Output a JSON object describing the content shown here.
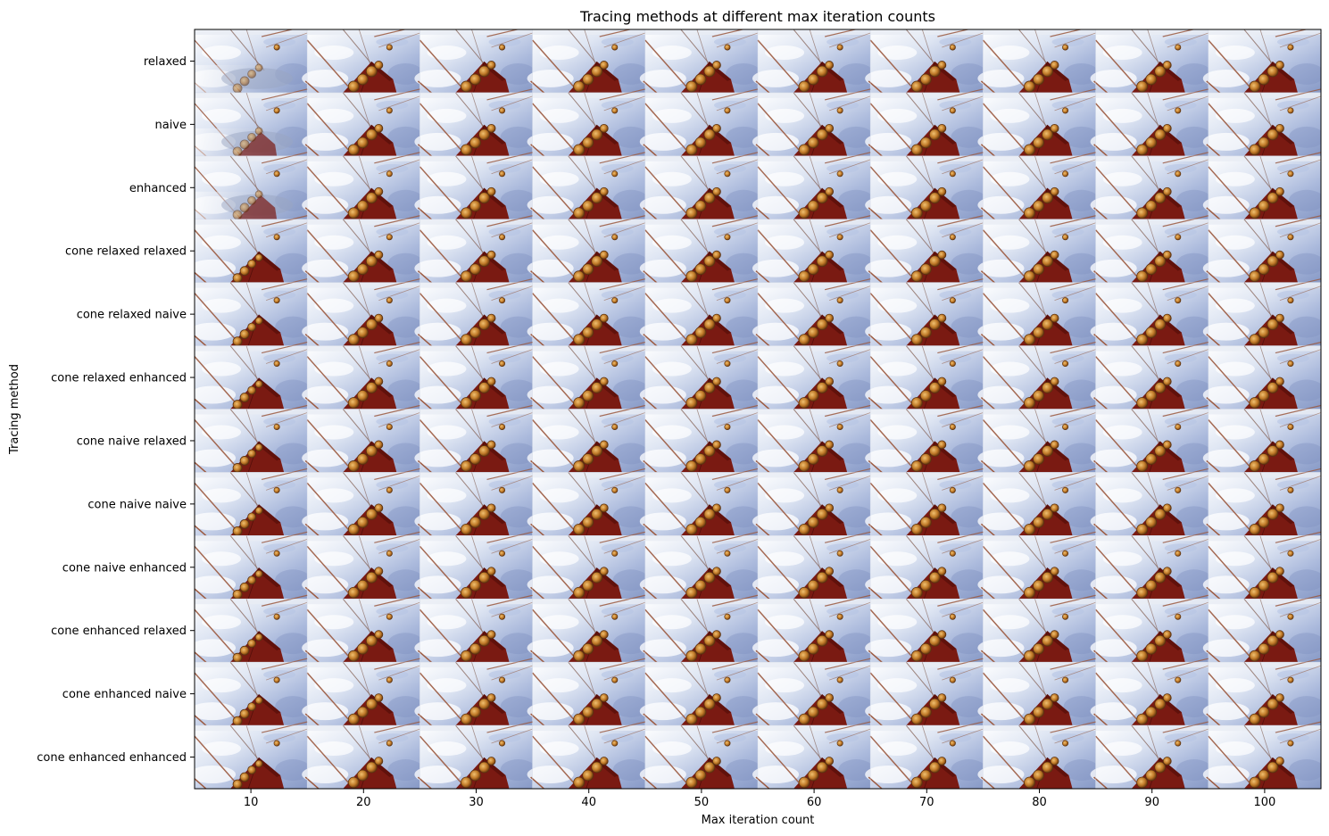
{
  "chart_data": {
    "type": "heatmap",
    "title": "Tracing methods at different max iteration counts",
    "xlabel": "Max iteration count",
    "ylabel": "Tracing method",
    "x": [
      10,
      20,
      30,
      40,
      50,
      60,
      70,
      80,
      90,
      100
    ],
    "xlim": [
      5,
      105
    ],
    "y": [
      "relaxed",
      "naive",
      "enhanced",
      "cone relaxed relaxed",
      "cone relaxed naive",
      "cone relaxed enhanced",
      "cone naive relaxed",
      "cone naive naive",
      "cone naive enhanced",
      "cone enhanced relaxed",
      "cone enhanced naive",
      "cone enhanced enhanced"
    ],
    "grid": false,
    "cell_content": "rendered image thumbnail",
    "colors": {
      "sky_light": "#ffffff",
      "sky_mid": "#c5d3ea",
      "sky_blue": "#8da2cc",
      "ship": "#7a1a12",
      "ship_dark": "#5a0f0a",
      "rope": "#9c5a40",
      "gear": "#c07a28"
    }
  }
}
